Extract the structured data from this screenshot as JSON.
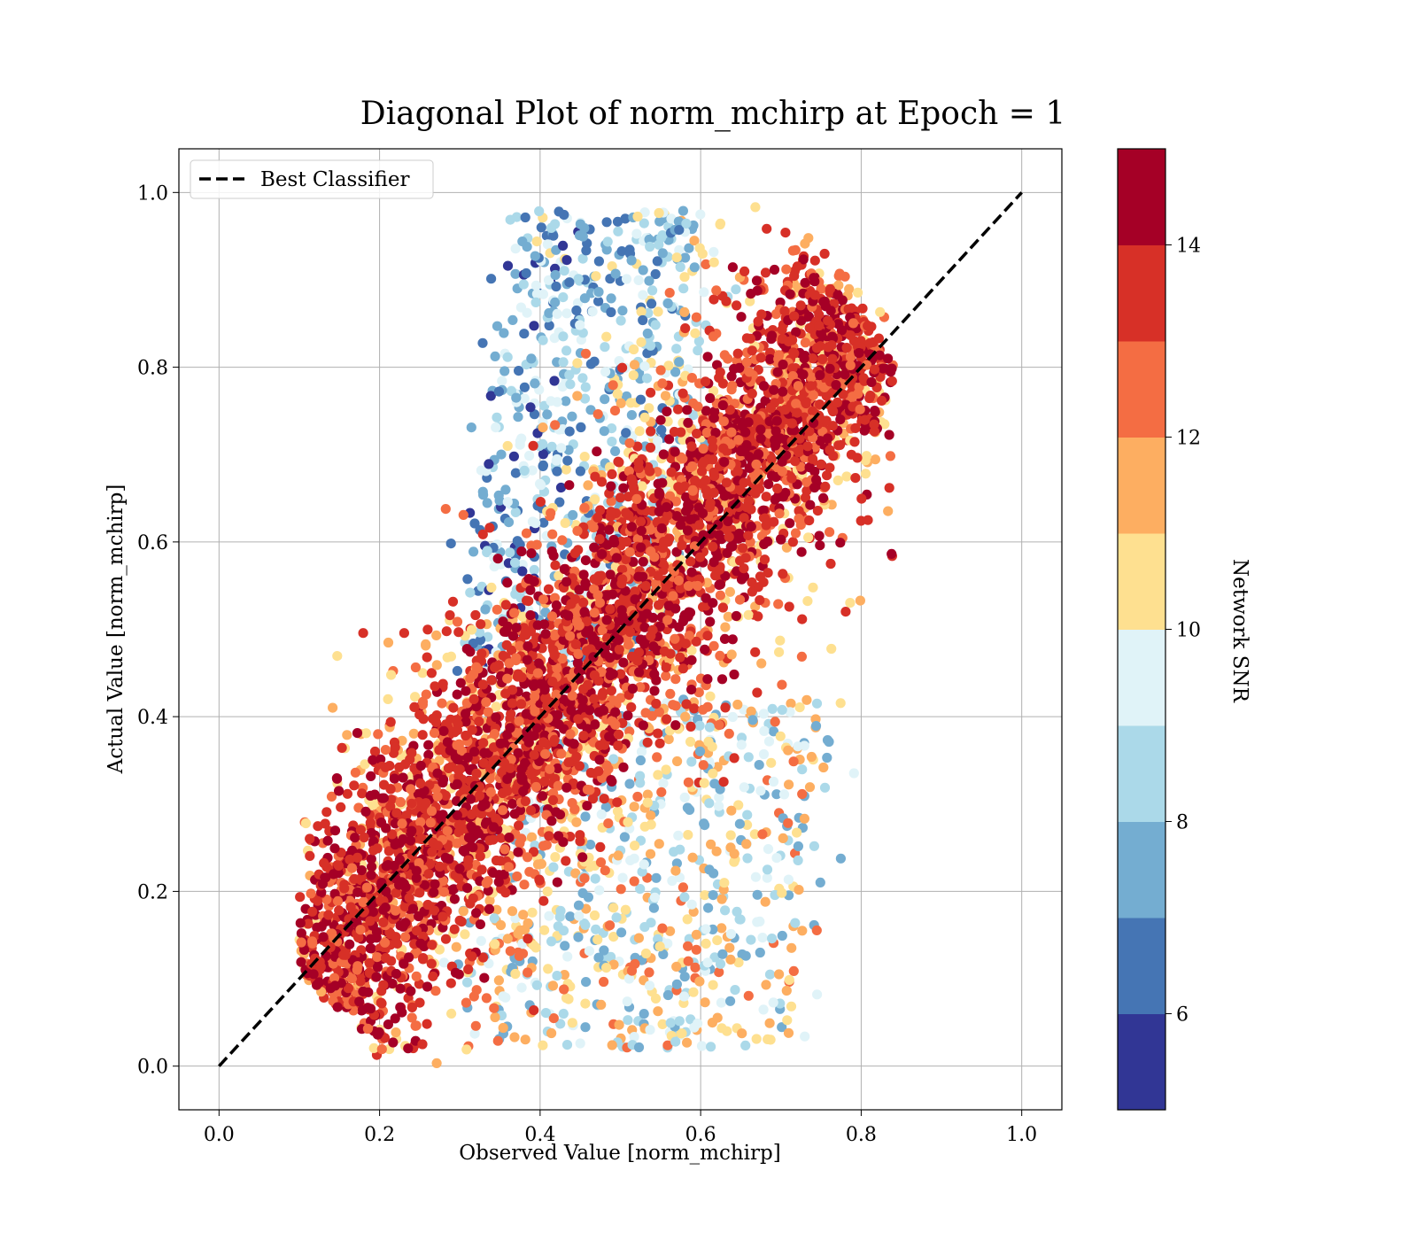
{
  "chart_data": {
    "type": "scatter",
    "title": "Diagonal Plot of norm_mchirp at Epoch = 1",
    "xlabel": "Observed Value [norm_mchirp]",
    "ylabel": "Actual Value [norm_mchirp]",
    "xlim": [
      -0.05,
      1.05
    ],
    "ylim": [
      -0.05,
      1.05
    ],
    "xticks": [
      "0.0",
      "0.2",
      "0.4",
      "0.6",
      "0.8",
      "1.0"
    ],
    "yticks": [
      "0.0",
      "0.2",
      "0.4",
      "0.6",
      "0.8",
      "1.0"
    ],
    "grid": true,
    "legend": {
      "placement": "top-left",
      "entries": [
        "Best Classifier"
      ]
    },
    "reference_line": {
      "name": "Best Classifier",
      "style": "dashed",
      "color": "#000000",
      "x": [
        0.0,
        1.0
      ],
      "y": [
        0.0,
        1.0
      ]
    },
    "colorbar": {
      "label": "Network SNR",
      "range": [
        5,
        15
      ],
      "ticks": [
        "6",
        "8",
        "10",
        "12",
        "14"
      ],
      "tick_values": [
        6,
        8,
        10,
        12,
        14
      ],
      "colors": [
        "#313695",
        "#4575b4",
        "#74add1",
        "#abd9e9",
        "#e0f3f8",
        "#fee090",
        "#fdae61",
        "#f46d43",
        "#d73027",
        "#a50026"
      ]
    },
    "point_clusters": [
      {
        "description_snr": "high",
        "snr_range": [
          13,
          15
        ],
        "x_center": 0.45,
        "spread_along": 0.28,
        "spread_across": 0.07
      },
      {
        "snr_range": [
          5,
          9
        ],
        "x_range": [
          0.3,
          0.56
        ],
        "y_range": [
          0.45,
          0.97
        ]
      },
      {
        "snr_range": [
          8,
          12
        ],
        "x_range": [
          0.4,
          0.72
        ],
        "y_range": [
          0.05,
          0.4
        ]
      }
    ]
  }
}
